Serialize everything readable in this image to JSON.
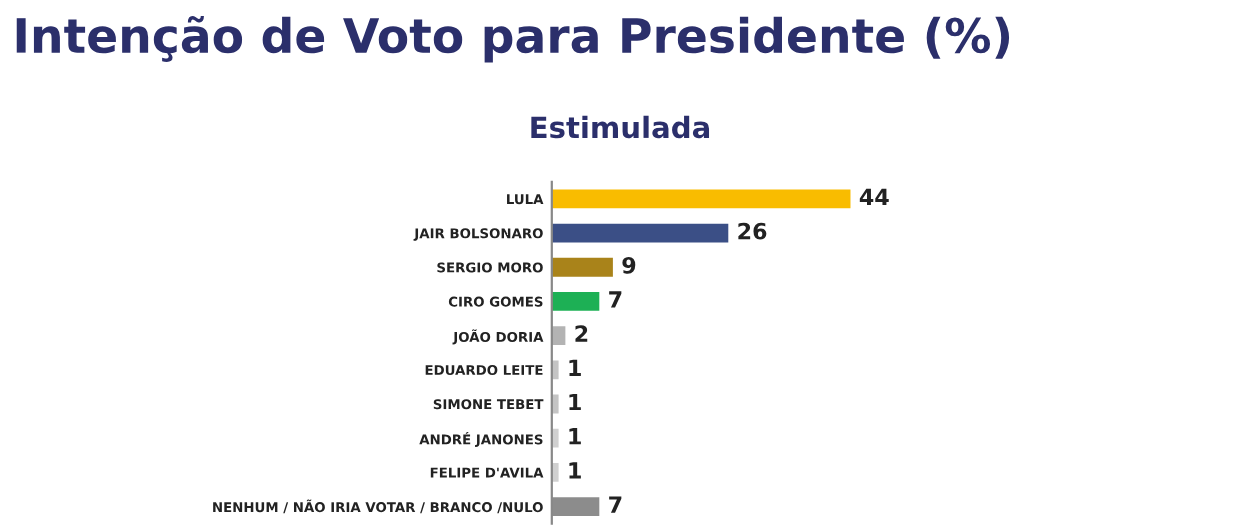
{
  "chart_data": {
    "type": "bar",
    "orientation": "horizontal",
    "title": "Intenção de Voto para Presidente (%)",
    "subtitle": "Estimulada",
    "categories": [
      "LULA",
      "JAIR BOLSONARO",
      "SERGIO MORO",
      "CIRO GOMES",
      "JOÃO DORIA",
      "EDUARDO LEITE",
      "SIMONE TEBET",
      "ANDRÉ JANONES",
      "FELIPE D'AVILA",
      "NENHUM / NÃO IRIA VOTAR / BRANCO /NULO"
    ],
    "values": [
      44,
      26,
      9,
      7,
      2,
      1,
      1,
      1,
      1,
      7
    ],
    "colors": [
      "#f9bc00",
      "#3b4f86",
      "#a9831a",
      "#1db055",
      "#b3b3b3",
      "#c4c4c4",
      "#c4c4c4",
      "#d0d0d0",
      "#d0d0d0",
      "#8c8c8c"
    ],
    "data_labels": true,
    "grid": false,
    "legend": false
  }
}
